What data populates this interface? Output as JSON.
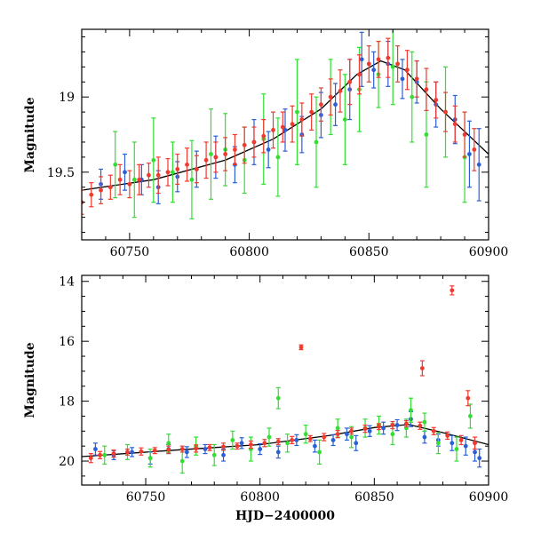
{
  "chart_data": [
    {
      "type": "scatter",
      "title": "",
      "xlabel": "",
      "ylabel": "Magnitude",
      "xlim": [
        60730,
        60900
      ],
      "ylim": [
        19.95,
        18.55
      ],
      "y_inverted": true,
      "grid": false,
      "x_ticks": [
        60750,
        60800,
        60850,
        60900
      ],
      "x_tick_labels": [
        "60750",
        "60800",
        "60850",
        "60900"
      ],
      "y_ticks": [
        19.0,
        19.5
      ],
      "y_tick_labels": [
        "19",
        "19.5"
      ],
      "series": [
        {
          "color": "#2a5fd6",
          "x": [
            60738,
            60748,
            60755,
            60762,
            60770,
            60778,
            60786,
            60794,
            60802,
            60808,
            60815,
            60822,
            60830,
            60836,
            60842,
            60847,
            60852,
            60858,
            60864,
            60870,
            60878,
            60886,
            60892,
            60896
          ],
          "y": [
            19.58,
            19.5,
            19.55,
            19.6,
            19.53,
            19.48,
            19.4,
            19.45,
            19.3,
            19.35,
            19.22,
            19.25,
            19.12,
            19.05,
            18.95,
            18.75,
            18.82,
            18.78,
            18.88,
            18.9,
            19.05,
            19.15,
            19.38,
            19.45
          ],
          "err": [
            0.1,
            0.12,
            0.1,
            0.11,
            0.1,
            0.12,
            0.14,
            0.12,
            0.15,
            0.12,
            0.14,
            0.12,
            0.15,
            0.14,
            0.2,
            0.18,
            0.12,
            0.15,
            0.13,
            0.14,
            0.15,
            0.16,
            0.22,
            0.24
          ]
        },
        {
          "color": "#33dd33",
          "x": [
            60744,
            60752,
            60760,
            60768,
            60776,
            60784,
            60790,
            60798,
            60806,
            60812,
            60820,
            60828,
            60834,
            60840,
            60846,
            60854,
            60860,
            60868,
            60874,
            60882,
            60890
          ],
          "y": [
            19.45,
            19.55,
            19.42,
            19.5,
            19.55,
            19.38,
            19.35,
            19.42,
            19.28,
            19.4,
            19.1,
            19.3,
            19.0,
            19.15,
            18.95,
            18.85,
            18.8,
            19.0,
            19.25,
            19.1,
            19.4
          ],
          "err": [
            0.22,
            0.25,
            0.28,
            0.2,
            0.26,
            0.3,
            0.24,
            0.22,
            0.3,
            0.26,
            0.35,
            0.3,
            0.25,
            0.3,
            0.28,
            0.22,
            0.25,
            0.3,
            0.35,
            0.3,
            0.3
          ]
        },
        {
          "color": "#f03a2e",
          "x": [
            60730,
            60734,
            60738,
            60742,
            60746,
            60750,
            60754,
            60758,
            60762,
            60766,
            60770,
            60774,
            60778,
            60782,
            60786,
            60790,
            60794,
            60798,
            60802,
            60806,
            60810,
            60814,
            60818,
            60822,
            60826,
            60830,
            60834,
            60838,
            60842,
            60846,
            60850,
            60854,
            60858,
            60862,
            60866,
            60870,
            60874,
            60878,
            60882,
            60886,
            60890,
            60894
          ],
          "y": [
            19.7,
            19.65,
            19.62,
            19.6,
            19.55,
            19.58,
            19.55,
            19.52,
            19.52,
            19.5,
            19.48,
            19.45,
            19.48,
            19.42,
            19.4,
            19.38,
            19.35,
            19.32,
            19.3,
            19.26,
            19.22,
            19.2,
            19.18,
            19.15,
            19.1,
            19.05,
            19.0,
            18.96,
            18.9,
            18.85,
            18.78,
            18.75,
            18.74,
            18.78,
            18.82,
            18.88,
            18.95,
            19.02,
            19.1,
            19.18,
            19.25,
            19.35
          ],
          "err": [
            0.08,
            0.08,
            0.09,
            0.08,
            0.1,
            0.09,
            0.1,
            0.08,
            0.12,
            0.09,
            0.1,
            0.11,
            0.09,
            0.12,
            0.1,
            0.11,
            0.1,
            0.12,
            0.1,
            0.11,
            0.12,
            0.1,
            0.12,
            0.11,
            0.12,
            0.11,
            0.12,
            0.14,
            0.15,
            0.13,
            0.12,
            0.12,
            0.13,
            0.12,
            0.13,
            0.12,
            0.14,
            0.12,
            0.13,
            0.12,
            0.15,
            0.14
          ]
        }
      ],
      "fit_curve": {
        "color": "#000000",
        "x": [
          60730,
          60760,
          60790,
          60810,
          60830,
          60845,
          60855,
          60865,
          60880,
          60900
        ],
        "y": [
          19.62,
          19.55,
          19.42,
          19.28,
          19.08,
          18.85,
          18.76,
          18.82,
          19.08,
          19.38
        ]
      }
    },
    {
      "type": "scatter",
      "title": "",
      "xlabel": "HJD−2400000",
      "ylabel": "Magnitude",
      "xlim": [
        60722,
        60900
      ],
      "ylim": [
        20.8,
        13.8
      ],
      "y_inverted": true,
      "grid": false,
      "x_ticks": [
        60750,
        60800,
        60850,
        60900
      ],
      "x_tick_labels": [
        "60750",
        "60800",
        "60850",
        "60900"
      ],
      "y_ticks": [
        14,
        16,
        18,
        20
      ],
      "y_tick_labels": [
        "14",
        "16",
        "18",
        "20"
      ],
      "series": [
        {
          "color": "#2a5fd6",
          "x": [
            60728,
            60736,
            60744,
            60752,
            60760,
            60768,
            60776,
            60784,
            60792,
            60800,
            60808,
            60816,
            60824,
            60832,
            60838,
            60842,
            60848,
            60854,
            60860,
            60866,
            60872,
            60878,
            60884,
            60890,
            60894,
            60896
          ],
          "y": [
            19.6,
            19.8,
            19.7,
            19.9,
            19.6,
            19.7,
            19.6,
            19.8,
            19.4,
            19.6,
            19.7,
            19.3,
            19.5,
            19.3,
            19.1,
            19.4,
            19.0,
            18.9,
            18.8,
            18.6,
            19.2,
            19.3,
            19.4,
            19.5,
            19.7,
            19.9
          ],
          "err": [
            0.2,
            0.15,
            0.15,
            0.2,
            0.15,
            0.18,
            0.15,
            0.2,
            0.18,
            0.18,
            0.2,
            0.18,
            0.2,
            0.18,
            0.2,
            0.25,
            0.18,
            0.2,
            0.18,
            0.25,
            0.2,
            0.2,
            0.25,
            0.3,
            0.3,
            0.3
          ]
        },
        {
          "color": "#33dd33",
          "x": [
            60732,
            60742,
            60752,
            60760,
            60766,
            60772,
            60780,
            60788,
            60796,
            60804,
            60808,
            60812,
            60820,
            60826,
            60834,
            60840,
            60846,
            60852,
            60858,
            60864,
            60866,
            60872,
            60878,
            60886,
            60892
          ],
          "y": [
            19.8,
            19.7,
            19.9,
            19.4,
            20.0,
            19.5,
            19.8,
            19.3,
            19.6,
            19.2,
            17.9,
            19.4,
            19.1,
            19.7,
            18.9,
            19.2,
            18.9,
            18.8,
            19.1,
            18.9,
            18.3,
            18.7,
            19.4,
            19.6,
            18.5
          ],
          "err": [
            0.3,
            0.25,
            0.3,
            0.3,
            0.4,
            0.3,
            0.35,
            0.3,
            0.4,
            0.3,
            0.35,
            0.3,
            0.3,
            0.4,
            0.3,
            0.35,
            0.3,
            0.3,
            0.35,
            0.3,
            0.4,
            0.3,
            0.35,
            0.4,
            0.4
          ]
        },
        {
          "color": "#f03a2e",
          "x": [
            60726,
            60730,
            60736,
            60742,
            60748,
            60754,
            60760,
            60766,
            60772,
            60778,
            60784,
            60790,
            60796,
            60802,
            60808,
            60814,
            60818,
            60822,
            60828,
            60834,
            60840,
            60846,
            60852,
            60858,
            60864,
            60870,
            60871,
            60876,
            60882,
            60884,
            60888,
            60891,
            60894
          ],
          "y": [
            19.9,
            19.8,
            19.75,
            19.7,
            19.68,
            19.65,
            19.62,
            19.6,
            19.58,
            19.55,
            19.52,
            19.5,
            19.45,
            19.4,
            19.35,
            19.3,
            16.2,
            19.25,
            19.2,
            19.1,
            19.0,
            18.92,
            18.85,
            18.8,
            18.75,
            18.82,
            16.9,
            19.0,
            19.15,
            14.3,
            19.3,
            17.9,
            19.4
          ],
          "err": [
            0.15,
            0.12,
            0.12,
            0.1,
            0.12,
            0.1,
            0.12,
            0.1,
            0.12,
            0.1,
            0.12,
            0.1,
            0.12,
            0.12,
            0.1,
            0.12,
            0.08,
            0.1,
            0.12,
            0.12,
            0.1,
            0.12,
            0.1,
            0.12,
            0.1,
            0.12,
            0.25,
            0.12,
            0.12,
            0.15,
            0.15,
            0.25,
            0.2
          ]
        }
      ],
      "fit_curve": {
        "color": "#000000",
        "x": [
          60722,
          60760,
          60800,
          60830,
          60850,
          60865,
          60880,
          60900
        ],
        "y": [
          19.85,
          19.65,
          19.45,
          19.15,
          18.88,
          18.78,
          19.05,
          19.45
        ]
      }
    }
  ]
}
